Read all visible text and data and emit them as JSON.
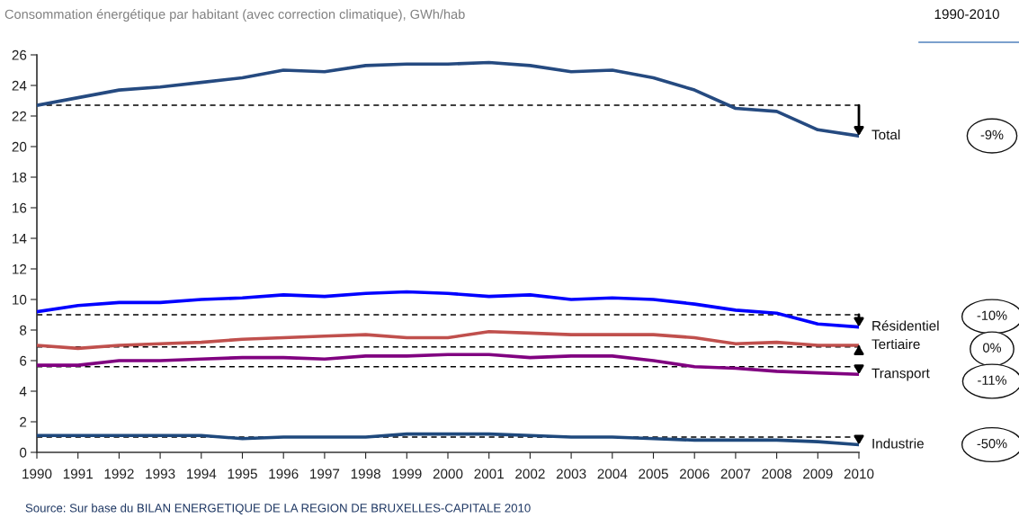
{
  "chart_data": {
    "type": "line",
    "title": "Consommation énergétique par habitant (avec correction climatique), GWh/hab",
    "x": [
      1990,
      1991,
      1992,
      1993,
      1994,
      1995,
      1996,
      1997,
      1998,
      1999,
      2000,
      2001,
      2002,
      2003,
      2004,
      2005,
      2006,
      2007,
      2008,
      2009,
      2010
    ],
    "series": [
      {
        "name": "Total",
        "color": "#254a80",
        "values": [
          22.7,
          23.2,
          23.7,
          23.9,
          24.2,
          24.5,
          25.0,
          24.9,
          25.3,
          25.4,
          25.4,
          25.5,
          25.3,
          24.9,
          25.0,
          24.5,
          23.7,
          22.5,
          22.3,
          21.1,
          20.7
        ]
      },
      {
        "name": "Résidentiel",
        "color": "#0000ff",
        "values": [
          9.2,
          9.6,
          9.8,
          9.8,
          10.0,
          10.1,
          10.3,
          10.2,
          10.4,
          10.5,
          10.4,
          10.2,
          10.3,
          10.0,
          10.1,
          10.0,
          9.7,
          9.3,
          9.1,
          8.4,
          8.2
        ]
      },
      {
        "name": "Tertiaire",
        "color": "#c0504d",
        "values": [
          7.0,
          6.8,
          7.0,
          7.1,
          7.2,
          7.4,
          7.5,
          7.6,
          7.7,
          7.5,
          7.5,
          7.9,
          7.8,
          7.7,
          7.7,
          7.7,
          7.5,
          7.1,
          7.2,
          7.0,
          7.0
        ]
      },
      {
        "name": "Transport",
        "color": "#800080",
        "values": [
          5.7,
          5.7,
          6.0,
          6.0,
          6.1,
          6.2,
          6.2,
          6.1,
          6.3,
          6.3,
          6.4,
          6.4,
          6.2,
          6.3,
          6.3,
          6.0,
          5.6,
          5.5,
          5.3,
          5.2,
          5.1
        ]
      },
      {
        "name": "Industrie",
        "color": "#1f497d",
        "values": [
          1.1,
          1.1,
          1.1,
          1.1,
          1.1,
          0.9,
          1.0,
          1.0,
          1.0,
          1.2,
          1.2,
          1.2,
          1.1,
          1.0,
          1.0,
          0.9,
          0.8,
          0.8,
          0.8,
          0.7,
          0.5
        ]
      }
    ],
    "xlim": [
      1990,
      2010
    ],
    "xticks": [
      1990,
      1991,
      1992,
      1993,
      1994,
      1995,
      1996,
      1997,
      1998,
      1999,
      2000,
      2001,
      2002,
      2003,
      2004,
      2005,
      2006,
      2007,
      2008,
      2009,
      2010
    ],
    "ylim": [
      0,
      26
    ],
    "yticks": [
      0,
      2,
      4,
      6,
      8,
      10,
      12,
      14,
      16,
      18,
      20,
      22,
      24,
      26
    ],
    "ref_lines": [
      {
        "axis": "y",
        "value": 22.7,
        "color": "#000000",
        "line_style": "dashed"
      },
      {
        "axis": "y",
        "value": 9.0,
        "color": "#000000",
        "line_style": "dashed"
      },
      {
        "axis": "y",
        "value": 6.9,
        "color": "#000000",
        "line_style": "dashed"
      },
      {
        "axis": "y",
        "value": 5.6,
        "color": "#000000",
        "line_style": "dashed"
      },
      {
        "axis": "y",
        "value": 1.0,
        "color": "#000000",
        "line_style": "dashed"
      }
    ],
    "annotations": [
      "1990-2010",
      "-9%",
      "-10%",
      "0%",
      "-11%",
      "-50%",
      "Source: Sur base du BILAN ENERGETIQUE DE LA REGION DE BRUXELLES-CAPITALE 2010"
    ],
    "grid": false,
    "legend": false,
    "line_style": "solid"
  }
}
